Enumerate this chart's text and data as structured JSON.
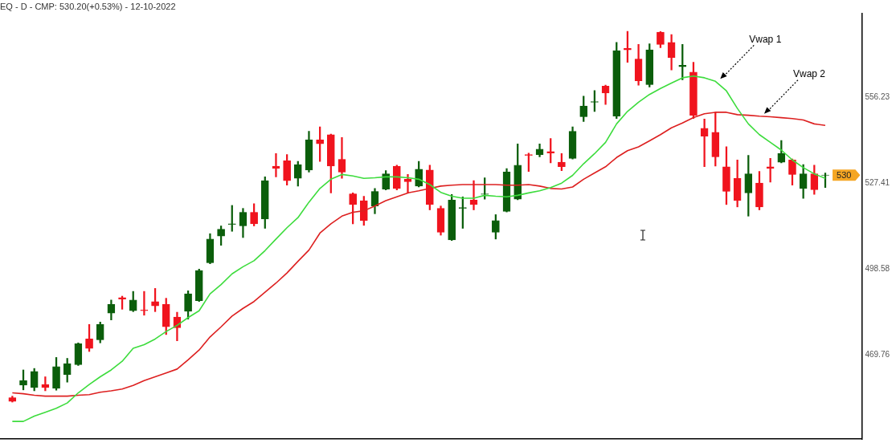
{
  "chart_data": {
    "type": "candlestick",
    "title": "EQ - D - CMP: 530.20(+0.53%) - 12-10-2022",
    "categories": [
      null,
      null,
      null,
      null,
      null,
      null,
      null,
      null,
      null,
      null,
      null,
      null,
      null,
      null,
      null,
      null,
      null,
      null,
      null,
      null,
      null,
      null,
      null,
      null,
      null,
      null,
      null,
      null,
      null,
      null,
      null,
      null,
      null,
      null,
      null,
      null,
      null,
      null,
      null,
      null,
      null,
      null,
      null,
      null,
      null,
      null,
      null,
      null,
      null,
      null,
      null,
      null,
      null,
      null,
      null,
      null,
      null,
      null,
      null,
      null,
      null,
      null,
      null,
      null,
      null,
      null,
      null,
      null,
      null,
      null,
      null,
      null,
      null,
      null,
      null
    ],
    "ohlc": [
      [
        455.4,
        455.9,
        453.9,
        454.1
      ],
      [
        459.6,
        464.7,
        458.0,
        461.1
      ],
      [
        458.8,
        465.2,
        457.7,
        464.2
      ],
      [
        459.8,
        462.4,
        457.7,
        458.8
      ],
      [
        458.5,
        468.9,
        457.9,
        465.8
      ],
      [
        463.2,
        468.6,
        460.6,
        466.8
      ],
      [
        466.5,
        473.8,
        466.2,
        473.5
      ],
      [
        475.1,
        480.0,
        470.9,
        471.9
      ],
      [
        474.8,
        480.8,
        473.8,
        480.0
      ],
      [
        483.8,
        488.2,
        481.5,
        486.7
      ],
      [
        489.0,
        489.5,
        485.1,
        488.5
      ],
      [
        484.6,
        491.1,
        484.3,
        488.2
      ],
      [
        484.9,
        491.1,
        483.1,
        484.6
      ],
      [
        487.7,
        492.1,
        484.3,
        486.2
      ],
      [
        486.7,
        488.8,
        476.6,
        479.2
      ],
      [
        482.5,
        484.1,
        474.5,
        478.9
      ],
      [
        484.4,
        491.3,
        481.8,
        490.3
      ],
      [
        488.0,
        498.6,
        487.7,
        498.1
      ],
      [
        500.7,
        510.5,
        500.4,
        508.7
      ],
      [
        509.7,
        513.1,
        506.6,
        512.0
      ],
      [
        513.6,
        520.0,
        511.3,
        513.8
      ],
      [
        513.1,
        519.0,
        509.2,
        517.7
      ],
      [
        517.7,
        520.6,
        513.1,
        513.8
      ],
      [
        515.4,
        529.6,
        512.3,
        528.3
      ],
      [
        533.2,
        537.4,
        529.6,
        532.4
      ],
      [
        535.0,
        537.1,
        526.8,
        528.3
      ],
      [
        529.1,
        534.8,
        526.5,
        533.7
      ],
      [
        531.9,
        544.9,
        531.2,
        542.0
      ],
      [
        542.0,
        546.4,
        534.8,
        540.7
      ],
      [
        543.8,
        544.0,
        524.2,
        533.2
      ],
      [
        535.5,
        542.8,
        529.1,
        531.2
      ],
      [
        523.9,
        524.2,
        513.8,
        520.3
      ],
      [
        521.6,
        523.1,
        513.3,
        514.9
      ],
      [
        519.8,
        525.7,
        517.2,
        524.7
      ],
      [
        525.5,
        531.7,
        525.2,
        530.6
      ],
      [
        533.2,
        533.5,
        525.2,
        525.7
      ],
      [
        528.8,
        530.4,
        524.2,
        528.0
      ],
      [
        526.5,
        534.8,
        526.2,
        532.2
      ],
      [
        531.9,
        533.5,
        518.5,
        520.3
      ],
      [
        519.0,
        519.8,
        510.0,
        511.0
      ],
      [
        508.4,
        523.7,
        508.2,
        521.8
      ],
      [
        519.0,
        522.9,
        512.3,
        519.3
      ],
      [
        521.8,
        528.3,
        518.5,
        520.3
      ],
      [
        523.7,
        529.3,
        522.1,
        523.9
      ],
      [
        511.0,
        516.9,
        508.7,
        514.9
      ],
      [
        518.0,
        532.4,
        517.8,
        531.2
      ],
      [
        522.1,
        540.7,
        521.9,
        533.5
      ],
      [
        537.1,
        537.6,
        531.4,
        536.8
      ],
      [
        537.1,
        540.7,
        536.3,
        538.9
      ],
      [
        538.1,
        542.5,
        534.3,
        537.6
      ],
      [
        534.5,
        537.4,
        531.7,
        533.0
      ],
      [
        535.8,
        546.4,
        535.6,
        544.9
      ],
      [
        549.8,
        556.7,
        548.2,
        553.4
      ],
      [
        554.7,
        558.6,
        551.6,
        554.9
      ],
      [
        560.1,
        560.4,
        553.9,
        557.8
      ],
      [
        550.0,
        574.8,
        549.2,
        572.0
      ],
      [
        572.8,
        578.5,
        568.1,
        572.3
      ],
      [
        569.2,
        574.1,
        560.4,
        561.9
      ],
      [
        560.6,
        574.3,
        559.8,
        572.3
      ],
      [
        578.2,
        578.4,
        573.0,
        574.1
      ],
      [
        574.8,
        577.4,
        565.5,
        569.7
      ],
      [
        566.6,
        574.1,
        562.2,
        567.1
      ],
      [
        564.8,
        568.1,
        549.2,
        550.3
      ],
      [
        545.9,
        549.0,
        533.0,
        543.3
      ],
      [
        544.6,
        551.3,
        533.2,
        536.3
      ],
      [
        533.0,
        539.7,
        520.3,
        524.7
      ],
      [
        529.1,
        535.3,
        519.5,
        521.6
      ],
      [
        524.2,
        536.8,
        516.4,
        530.6
      ],
      [
        527.5,
        531.4,
        518.5,
        519.5
      ],
      [
        533.0,
        535.8,
        527.8,
        532.4
      ],
      [
        534.5,
        541.8,
        534.3,
        537.4
      ],
      [
        535.3,
        535.6,
        526.8,
        530.4
      ],
      [
        525.7,
        533.7,
        522.4,
        530.6
      ],
      [
        530.6,
        533.5,
        523.7,
        525.3
      ],
      [
        530.1,
        530.9,
        526.0,
        530.2
      ]
    ],
    "colors": [
      "#f0141e",
      "#0b5e0b",
      "#0b5e0b",
      "#f0141e",
      "#0b5e0b",
      "#0b5e0b",
      "#0b5e0b",
      "#f0141e",
      "#0b5e0b",
      "#0b5e0b",
      "#f0141e",
      "#0b5e0b",
      "#f0141e",
      "#f0141e",
      "#f0141e",
      "#f0141e",
      "#0b5e0b",
      "#0b5e0b",
      "#0b5e0b",
      "#0b5e0b",
      "#0b5e0b",
      "#0b5e0b",
      "#f0141e",
      "#0b5e0b",
      "#f0141e",
      "#f0141e",
      "#0b5e0b",
      "#0b5e0b",
      "#f0141e",
      "#f0141e",
      "#f0141e",
      "#f0141e",
      "#f0141e",
      "#0b5e0b",
      "#0b5e0b",
      "#f0141e",
      "#f0141e",
      "#0b5e0b",
      "#f0141e",
      "#f0141e",
      "#0b5e0b",
      "#0b5e0b",
      "#f0141e",
      "#0b5e0b",
      "#0b5e0b",
      "#0b5e0b",
      "#0b5e0b",
      "#f0141e",
      "#0b5e0b",
      "#f0141e",
      "#f0141e",
      "#0b5e0b",
      "#0b5e0b",
      "#0b5e0b",
      "#f0141e",
      "#0b5e0b",
      "#f0141e",
      "#f0141e",
      "#0b5e0b",
      "#f0141e",
      "#f0141e",
      "#0b5e0b",
      "#f0141e",
      "#f0141e",
      "#f0141e",
      "#f0141e",
      "#f0141e",
      "#0b5e0b",
      "#f0141e",
      "#f0141e",
      "#0b5e0b",
      "#f0141e",
      "#0b5e0b",
      "#f0141e",
      "#0b5e0b"
    ],
    "series": [
      {
        "name": "Vwap 1",
        "type": "line",
        "color": "#3ddc3d",
        "values": [
          447.4,
          447.4,
          449.2,
          450.5,
          451.8,
          453.6,
          457.0,
          459.8,
          462.4,
          464.7,
          467.6,
          472.0,
          473.2,
          475.1,
          477.6,
          479.7,
          482.3,
          484.6,
          490.3,
          493.4,
          497.0,
          499.4,
          501.4,
          504.8,
          508.7,
          512.5,
          515.9,
          521.1,
          525.7,
          528.8,
          530.4,
          529.9,
          529.1,
          529.3,
          529.6,
          529.6,
          529.3,
          528.8,
          527.0,
          524.4,
          523.1,
          522.4,
          522.4,
          523.4,
          523.1,
          522.9,
          523.4,
          524.2,
          524.9,
          526.0,
          527.5,
          530.1,
          534.0,
          537.4,
          541.2,
          547.4,
          551.6,
          554.7,
          557.3,
          559.3,
          561.1,
          562.9,
          563.5,
          562.9,
          561.7,
          558.5,
          552.6,
          547.4,
          543.8,
          541.2,
          538.6,
          535.3,
          532.7,
          530.6,
          529.1
        ]
      },
      {
        "name": "Vwap 2",
        "type": "line",
        "color": "#dd2020",
        "values": [
          457.0,
          456.7,
          456.2,
          455.9,
          455.9,
          455.9,
          456.2,
          456.4,
          457.2,
          457.7,
          458.3,
          459.5,
          461.1,
          462.4,
          463.7,
          465.0,
          468.1,
          471.4,
          475.8,
          479.2,
          482.8,
          485.4,
          487.7,
          490.8,
          493.9,
          497.3,
          501.2,
          505.0,
          510.7,
          513.8,
          516.4,
          517.7,
          518.2,
          519.8,
          521.6,
          522.9,
          524.2,
          524.9,
          525.7,
          526.5,
          526.8,
          527.0,
          527.0,
          527.0,
          527.0,
          526.8,
          526.8,
          527.0,
          526.5,
          525.7,
          525.5,
          526.2,
          528.8,
          530.9,
          533.0,
          536.1,
          538.4,
          539.7,
          541.7,
          543.8,
          546.1,
          547.7,
          549.5,
          550.8,
          551.3,
          551.3,
          550.5,
          550.3,
          550.0,
          549.8,
          549.5,
          549.2,
          548.7,
          547.4,
          546.9
        ]
      }
    ],
    "ylim": [
      441.5,
      584.4
    ],
    "yticks": [
      469.76,
      498.58,
      527.41,
      556.23
    ],
    "tick_labels": "y",
    "grid": false,
    "legend": false,
    "annotations": [
      "530"
    ]
  }
}
